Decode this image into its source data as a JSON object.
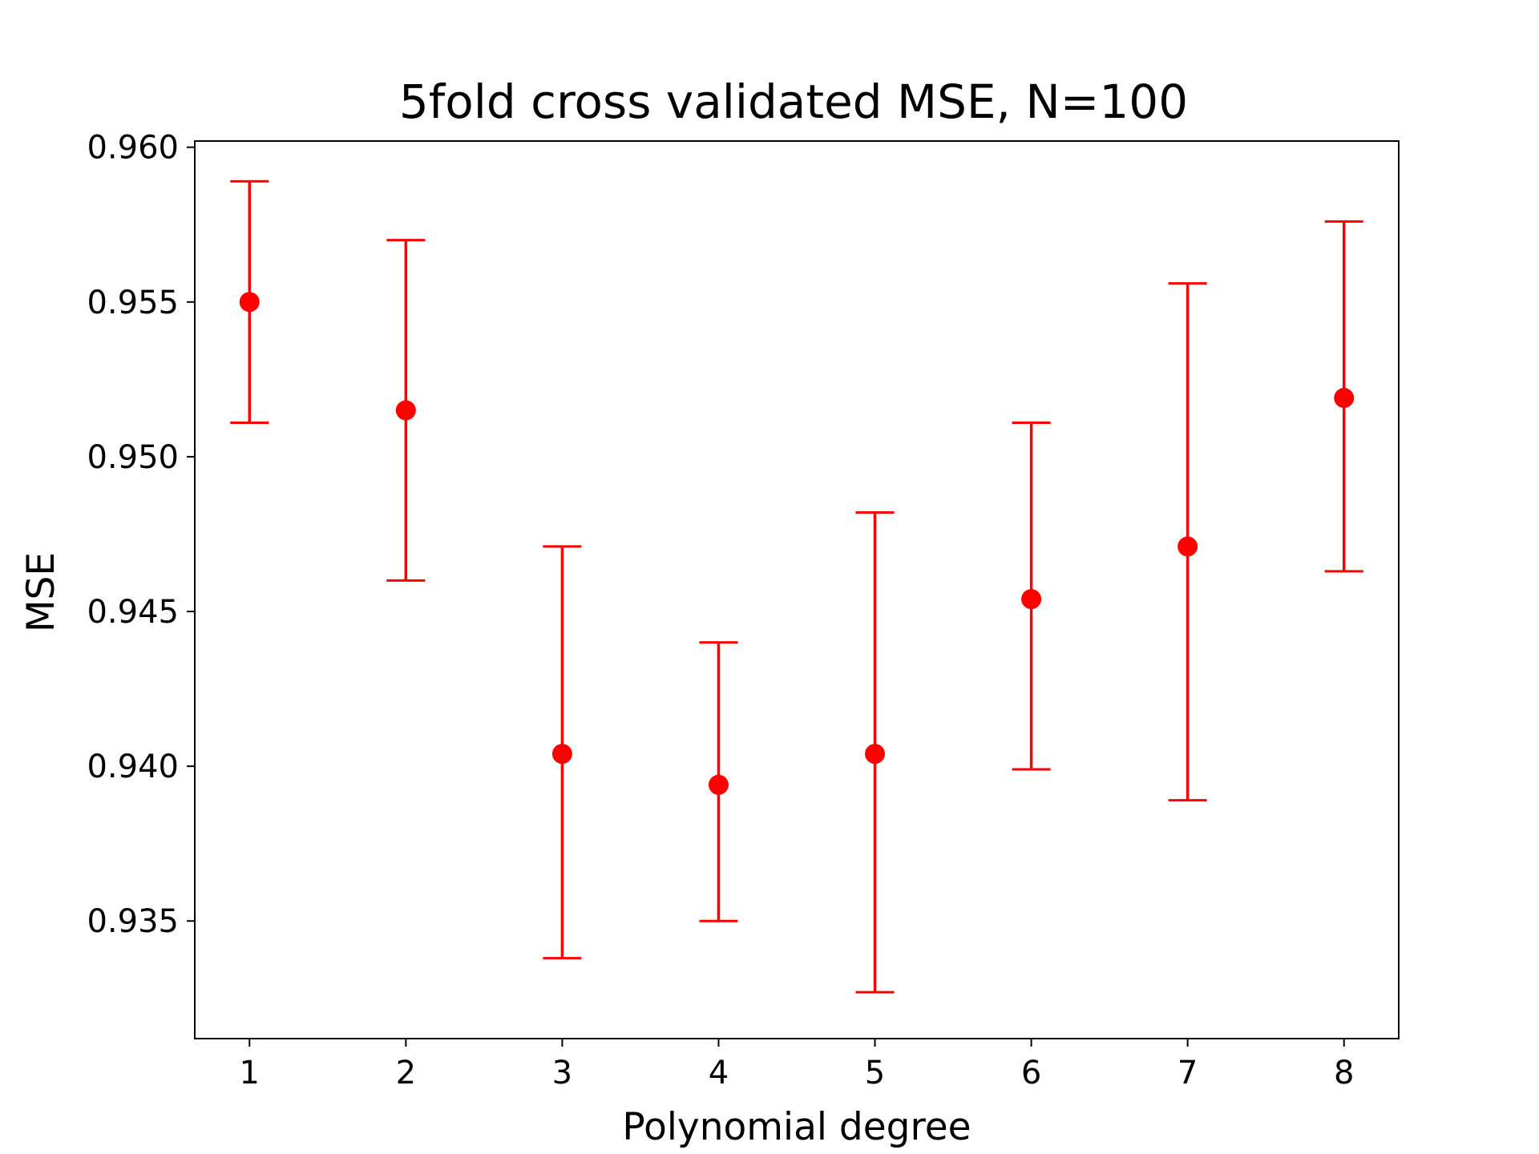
{
  "chart_data": {
    "type": "scatter",
    "title": "5fold cross validated MSE, N=100",
    "xlabel": "Polynomial degree",
    "ylabel": "MSE",
    "x": [
      1,
      2,
      3,
      4,
      5,
      6,
      7,
      8
    ],
    "xticks": [
      "1",
      "2",
      "3",
      "4",
      "5",
      "6",
      "7",
      "8"
    ],
    "yticks": [
      "0.935",
      "0.940",
      "0.945",
      "0.950",
      "0.955",
      "0.960"
    ],
    "ytick_values": [
      0.935,
      0.94,
      0.945,
      0.95,
      0.955,
      0.96
    ],
    "xlim": [
      0.65,
      8.35
    ],
    "ylim": [
      0.9312,
      0.9602
    ],
    "grid": false,
    "color": "#ff0000",
    "series": [
      {
        "values": [
          0.955,
          0.9515,
          0.9404,
          0.9394,
          0.9404,
          0.9454,
          0.9471,
          0.9519
        ],
        "error_low": [
          0.9511,
          0.946,
          0.9338,
          0.935,
          0.9327,
          0.9399,
          0.9389,
          0.9463
        ],
        "error_high": [
          0.9589,
          0.957,
          0.9471,
          0.944,
          0.9482,
          0.9511,
          0.9556,
          0.9576
        ]
      }
    ]
  }
}
